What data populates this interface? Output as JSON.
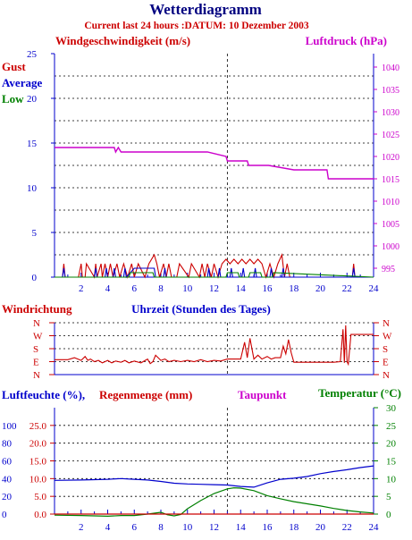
{
  "header": {
    "title": "Wetterdiagramm",
    "subtitle": "Current last 24 hours :DATUM: 10 Dezember 2003"
  },
  "colors": {
    "title": "#000080",
    "subtitle": "#cc0000",
    "wind": "#cc0000",
    "pressure": "#cc00cc",
    "average": "#0000cc",
    "low": "#008000",
    "grid": "#000000",
    "axis_frame": "#0000cc",
    "humidity": "#0000cc",
    "rain": "#cc0000",
    "dewpoint": "#cc00cc",
    "temperature": "#008000"
  },
  "chart_data": [
    {
      "type": "line",
      "name": "wind_pressure",
      "left_title": "Windgeschwindigkeit (m/s)",
      "right_title": "Luftdruck (hPa)",
      "legend": [
        "Gust",
        "Average",
        "Low"
      ],
      "x_ticks": [
        "2",
        "4",
        "6",
        "8",
        "10",
        "12",
        "14",
        "16",
        "18",
        "20",
        "22",
        "24"
      ],
      "y_left_ticks": [
        "0",
        "5",
        "10",
        "15",
        "20",
        "25"
      ],
      "y_right_ticks": [
        "995",
        "1000",
        "1005",
        "1010",
        "1015",
        "1020",
        "1025",
        "1030",
        "1035",
        "1040"
      ],
      "xlim": [
        0,
        24
      ],
      "ylim_left": [
        0,
        25
      ],
      "ylim_right": [
        993,
        1043
      ],
      "now_marker_x": 13,
      "grid": true,
      "series": [
        {
          "name": "Luftdruck",
          "axis": "right",
          "x": [
            0,
            2.5,
            4.5,
            4.6,
            4.8,
            5,
            7,
            9,
            10,
            11.5,
            12.9,
            13,
            14.5,
            14.6,
            16,
            16.1,
            18,
            20.5,
            20.6,
            24
          ],
          "y": [
            1022,
            1022,
            1022,
            1021,
            1022,
            1021,
            1021,
            1021,
            1021,
            1021,
            1020,
            1019,
            1019,
            1018,
            1018,
            1018,
            1017,
            1017,
            1015,
            1015
          ]
        },
        {
          "name": "Gust",
          "axis": "left",
          "x": [
            0,
            0.6,
            0.7,
            0.8,
            1.8,
            2.0,
            2.1,
            2.3,
            2.4,
            3.0,
            3.1,
            3.2,
            3.5,
            3.6,
            3.8,
            4.0,
            4.2,
            4.4,
            4.7,
            4.9,
            5.2,
            5.5,
            5.8,
            6.0,
            6.3,
            6.8,
            7.1,
            7.5,
            7.7,
            7.9,
            8.2,
            8.4,
            8.6,
            8.8,
            9.2,
            9.4,
            10.1,
            10.3,
            10.9,
            11.1,
            11.3,
            11.5,
            11.8,
            12.0,
            12.3,
            12.6,
            12.9,
            13.2,
            13.5,
            13.8,
            14.1,
            14.4,
            14.7,
            15.0,
            15.3,
            15.6,
            15.9,
            16.2,
            16.5,
            16.8,
            17.1,
            17.3,
            17.5,
            17.7,
            18.0,
            22.4,
            22.5,
            22.6,
            24
          ],
          "y": [
            0,
            0,
            1.5,
            0,
            0,
            1.5,
            0,
            0,
            1.5,
            0,
            1.5,
            0,
            1.5,
            0,
            1.5,
            0,
            1.5,
            0,
            1.5,
            0,
            1.5,
            0,
            1.5,
            0,
            1.5,
            0,
            1.5,
            2.5,
            1.5,
            0,
            1.5,
            0,
            1.5,
            0,
            0,
            1.5,
            0,
            1.5,
            0,
            1.5,
            0,
            1.5,
            0,
            1.5,
            0,
            1.5,
            2,
            1.5,
            2,
            1.5,
            2,
            1.5,
            2,
            1.5,
            2,
            1.5,
            0,
            1.5,
            0,
            1.5,
            2.5,
            0,
            1.5,
            0,
            0,
            0,
            1.5,
            0,
            0
          ]
        },
        {
          "name": "Average",
          "axis": "left",
          "x": [
            0,
            0.6,
            0.7,
            0.8,
            3.0,
            3.1,
            3.2,
            3.8,
            3.9,
            4.0,
            4.4,
            4.5,
            4.6,
            5.2,
            5.3,
            5.4,
            6.0,
            7.5,
            7.6,
            8.2,
            8.3,
            8.4,
            11.5,
            11.6,
            11.7,
            12.3,
            12.4,
            12.5,
            13.2,
            13.3,
            13.4,
            14.1,
            14.2,
            14.3,
            15.0,
            15.1,
            15.2,
            16.2,
            16.3,
            16.4,
            17.1,
            17.2,
            17.3,
            22.4,
            22.5,
            22.6,
            24
          ],
          "y": [
            0,
            0,
            1,
            0,
            0,
            1,
            0,
            0,
            1,
            0,
            0,
            1,
            0,
            0,
            1,
            0,
            1,
            1,
            0,
            0,
            1,
            0,
            0,
            1,
            0,
            0,
            1,
            0,
            0,
            1,
            0,
            0,
            1,
            0,
            0,
            1,
            0,
            0,
            1,
            0,
            0,
            1,
            0,
            0,
            1,
            0,
            0
          ]
        },
        {
          "name": "Low",
          "axis": "left",
          "x": [
            0,
            5.6,
            5.7,
            7.4,
            7.5,
            12.9,
            13.0,
            13.8,
            13.9,
            14.6,
            14.7,
            15.5,
            15.6,
            16.4,
            16.5,
            24
          ],
          "y": [
            0,
            0,
            0.5,
            0.5,
            0,
            0,
            0.5,
            0.5,
            0,
            0,
            0.5,
            0.5,
            0,
            0,
            0.5,
            0
          ]
        }
      ]
    },
    {
      "type": "line",
      "name": "wind_direction",
      "left_title": "Windrichtung",
      "center_title": "Uhrzeit (Stunden des Tages)",
      "direction_ticks": [
        "N",
        "W",
        "S",
        "E",
        "N"
      ],
      "xlim": [
        0,
        24
      ],
      "ylim": [
        0,
        4
      ],
      "now_marker_x": 13,
      "series": [
        {
          "name": "Windrichtung",
          "x": [
            0,
            1,
            1.5,
            2,
            2.3,
            2.5,
            2.7,
            3,
            3.3,
            3.6,
            4,
            4.3,
            4.6,
            5,
            5.3,
            5.6,
            6,
            6.5,
            7,
            7.2,
            7.4,
            7.6,
            7.8,
            8,
            8.3,
            8.6,
            9,
            9.5,
            10,
            10.5,
            11,
            11.5,
            12,
            12.5,
            13,
            13.5,
            14,
            14.3,
            14.5,
            14.7,
            15,
            15.3,
            15.6,
            16,
            16.3,
            16.6,
            17,
            17.2,
            17.4,
            17.6,
            17.8,
            18,
            18.5,
            19,
            20,
            21,
            21.5,
            21.7,
            21.8,
            21.9,
            22,
            22.1,
            22.3,
            22.5,
            23,
            24
          ],
          "y": [
            1.15,
            1.15,
            1.3,
            1.1,
            1.4,
            1.1,
            1.2,
            1,
            1.1,
            0.9,
            1.1,
            0.9,
            1.05,
            0.95,
            1.1,
            0.9,
            1.05,
            0.9,
            1.2,
            0.85,
            1,
            1.5,
            1.3,
            1.1,
            1.2,
            1,
            1.1,
            1,
            1.1,
            1,
            1.15,
            1,
            1.1,
            1.05,
            1.2,
            1.2,
            1.2,
            2.5,
            1.3,
            2.8,
            1.2,
            1.5,
            1.2,
            1.4,
            1.2,
            1.3,
            1.3,
            2.2,
            1.6,
            2.7,
            1.7,
            0.95,
            0.95,
            0.95,
            0.95,
            0.95,
            1.0,
            3.5,
            0.9,
            3.8,
            1.0,
            0.8,
            3.1,
            3.1,
            3.1,
            3.1
          ]
        }
      ]
    },
    {
      "type": "line",
      "name": "humidity_temperature",
      "left_titles": [
        "Luftfeuchte (%),",
        "Regenmenge (mm)"
      ],
      "dewpoint_title": "Taupunkt",
      "right_title": "Temperatur (°C)",
      "x_ticks": [
        "2",
        "4",
        "6",
        "8",
        "10",
        "12",
        "14",
        "16",
        "18",
        "20",
        "22",
        "24"
      ],
      "y_humidity_ticks": [
        "0",
        "20",
        "40",
        "60",
        "80",
        "100"
      ],
      "y_rain_ticks": [
        "0.0",
        "5.0",
        "10.0",
        "15.0",
        "20.0",
        "25.0"
      ],
      "y_temp_ticks": [
        "0",
        "5",
        "10",
        "15",
        "20",
        "25",
        "30"
      ],
      "xlim": [
        0,
        24
      ],
      "ylim": [
        0,
        30
      ],
      "now_marker_x": 13,
      "grid": true,
      "series": [
        {
          "name": "Luftfeuchte",
          "x": [
            0,
            2,
            4,
            5,
            6,
            7,
            8,
            9,
            10,
            11,
            12,
            13,
            14,
            15,
            16,
            17,
            18,
            19,
            20,
            21,
            22,
            23,
            24
          ],
          "y": [
            9.5,
            9.6,
            9.8,
            10.0,
            9.8,
            9.6,
            9.2,
            8.7,
            8.5,
            8.4,
            8.3,
            8.2,
            7.8,
            7.6,
            8.8,
            9.8,
            10.1,
            10.6,
            11.4,
            12.0,
            12.5,
            13.1,
            13.6
          ]
        },
        {
          "name": "Temperatur",
          "x": [
            0,
            2,
            4,
            5,
            6,
            7,
            8,
            8.5,
            9,
            9.5,
            10,
            11,
            12,
            13,
            13.5,
            14,
            15,
            16,
            17,
            18,
            19,
            20,
            21,
            22,
            23,
            24
          ],
          "y": [
            -0.3,
            -0.4,
            -0.6,
            -0.4,
            -0.4,
            0.0,
            0.5,
            -0.2,
            -0.5,
            -0.1,
            1.5,
            3.8,
            5.8,
            7.1,
            7.4,
            7.3,
            6.6,
            5.2,
            4.3,
            3.5,
            2.9,
            2.3,
            1.6,
            1.0,
            0.6,
            0.3
          ]
        },
        {
          "name": "Regenmenge",
          "x": [
            0,
            24
          ],
          "y": [
            0,
            0
          ]
        }
      ]
    }
  ]
}
